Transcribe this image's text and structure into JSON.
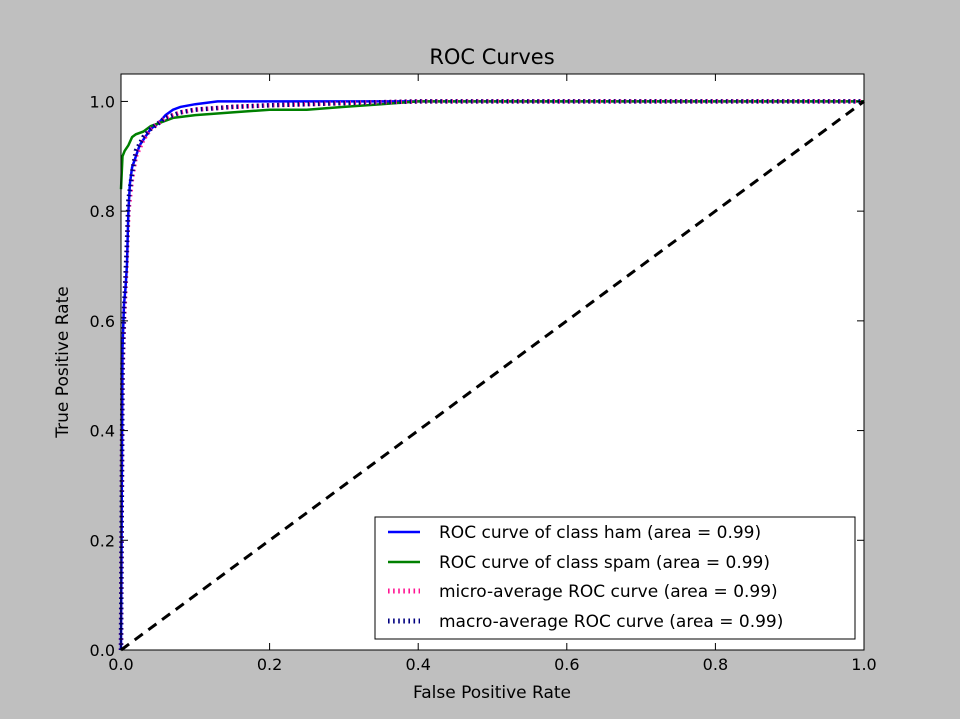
{
  "chart_data": {
    "type": "line",
    "title": "ROC Curves",
    "xlabel": "False Positive Rate",
    "ylabel": "True Positive Rate",
    "xlim": [
      0.0,
      1.0
    ],
    "ylim": [
      0.0,
      1.05
    ],
    "xticks": [
      "0.0",
      "0.2",
      "0.4",
      "0.6",
      "0.8",
      "1.0"
    ],
    "yticks": [
      "0.0",
      "0.2",
      "0.4",
      "0.6",
      "0.8",
      "1.0"
    ],
    "grid": false,
    "legend_position": "lower-right",
    "series": [
      {
        "name": "ROC curve of class ham (area = 0.99)",
        "color": "#0000ff",
        "style": "solid",
        "x": [
          0,
          0.002,
          0.004,
          0.006,
          0.008,
          0.01,
          0.012,
          0.015,
          0.02,
          0.025,
          0.03,
          0.035,
          0.04,
          0.05,
          0.06,
          0.07,
          0.08,
          0.1,
          0.13,
          0.2,
          0.3,
          0.4,
          0.6,
          0.8,
          1.0
        ],
        "y": [
          0,
          0.55,
          0.63,
          0.66,
          0.7,
          0.8,
          0.85,
          0.88,
          0.9,
          0.92,
          0.93,
          0.94,
          0.95,
          0.96,
          0.975,
          0.985,
          0.99,
          0.995,
          1.0,
          1.0,
          1.0,
          1.0,
          1.0,
          1.0,
          1.0
        ]
      },
      {
        "name": "ROC curve of class spam (area = 0.99)",
        "color": "#008000",
        "style": "solid",
        "x": [
          0,
          0.002,
          0.005,
          0.01,
          0.015,
          0.02,
          0.03,
          0.04,
          0.05,
          0.07,
          0.1,
          0.15,
          0.2,
          0.25,
          0.3,
          0.35,
          0.4,
          0.6,
          0.8,
          1.0
        ],
        "y": [
          0.84,
          0.9,
          0.91,
          0.92,
          0.935,
          0.94,
          0.945,
          0.955,
          0.96,
          0.97,
          0.975,
          0.98,
          0.985,
          0.985,
          0.99,
          0.995,
          1.0,
          1.0,
          1.0,
          1.0
        ]
      },
      {
        "name": "micro-average ROC curve (area = 0.99)",
        "color": "#ff1493",
        "style": "dotted",
        "x": [
          0,
          0.002,
          0.004,
          0.006,
          0.008,
          0.01,
          0.015,
          0.02,
          0.03,
          0.04,
          0.05,
          0.06,
          0.08,
          0.1,
          0.15,
          0.2,
          0.3,
          0.4,
          0.6,
          0.8,
          1.0
        ],
        "y": [
          0,
          0.5,
          0.6,
          0.66,
          0.72,
          0.8,
          0.86,
          0.9,
          0.93,
          0.95,
          0.96,
          0.97,
          0.98,
          0.985,
          0.99,
          0.993,
          0.997,
          1.0,
          1.0,
          1.0,
          1.0
        ]
      },
      {
        "name": "macro-average ROC curve (area = 0.99)",
        "color": "#000080",
        "style": "dotted",
        "x": [
          0,
          0.002,
          0.004,
          0.006,
          0.008,
          0.01,
          0.015,
          0.02,
          0.03,
          0.04,
          0.05,
          0.06,
          0.08,
          0.1,
          0.15,
          0.2,
          0.3,
          0.4,
          0.6,
          0.8,
          1.0
        ],
        "y": [
          0,
          0.52,
          0.62,
          0.68,
          0.74,
          0.82,
          0.87,
          0.91,
          0.935,
          0.95,
          0.96,
          0.97,
          0.98,
          0.985,
          0.99,
          0.993,
          0.997,
          1.0,
          1.0,
          1.0,
          1.0
        ]
      },
      {
        "color": "#000000",
        "style": "dashed",
        "x": [
          0,
          1
        ],
        "y": [
          0,
          1
        ]
      }
    ]
  }
}
